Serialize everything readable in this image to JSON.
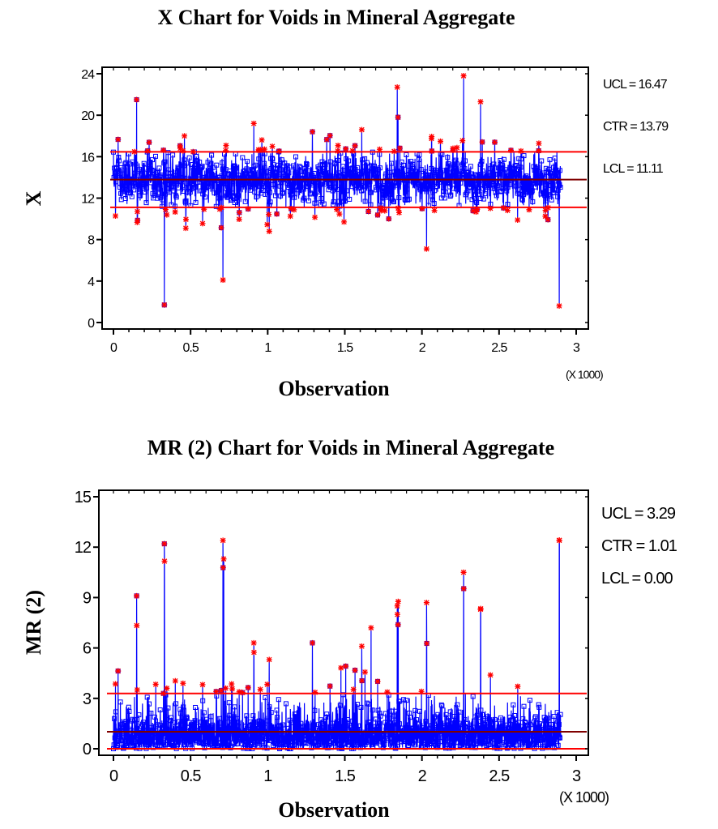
{
  "chart_data": [
    {
      "type": "line",
      "title": "X Chart for Voids in Mineral Aggregate",
      "xlabel": "Observation",
      "ylabel": "X",
      "x_multiplier_label": "(X 1000)",
      "xlim": [
        0,
        3
      ],
      "ylim": [
        0,
        24
      ],
      "x_ticks": [
        "0",
        "0.5",
        "1",
        "1.5",
        "2",
        "2.5",
        "3"
      ],
      "y_ticks": [
        "0",
        "4",
        "8",
        "12",
        "16",
        "20",
        "24"
      ],
      "n_observations": 2900,
      "center": 13.79,
      "band_sigma": 0.8,
      "seed": 7,
      "control_limits": [
        {
          "name": "UCL",
          "label": "UCL = 16.47",
          "value": 16.47
        },
        {
          "name": "CTR",
          "label": "CTR = 13.79",
          "value": 13.79
        },
        {
          "name": "LCL",
          "label": "LCL = 11.11",
          "value": 11.11
        }
      ],
      "notable_points": [
        {
          "x": 0.15,
          "y": 21.5
        },
        {
          "x": 0.33,
          "y": 1.7
        },
        {
          "x": 0.46,
          "y": 18.0
        },
        {
          "x": 0.71,
          "y": 4.1
        },
        {
          "x": 0.91,
          "y": 19.2
        },
        {
          "x": 1.01,
          "y": 8.8
        },
        {
          "x": 1.29,
          "y": 18.4
        },
        {
          "x": 1.61,
          "y": 18.6
        },
        {
          "x": 1.84,
          "y": 22.7
        },
        {
          "x": 1.845,
          "y": 19.8
        },
        {
          "x": 2.03,
          "y": 7.1
        },
        {
          "x": 2.27,
          "y": 23.8
        },
        {
          "x": 2.38,
          "y": 21.3
        },
        {
          "x": 2.89,
          "y": 1.6
        }
      ],
      "grid": false,
      "legend": "none",
      "colors": {
        "series": "#0000ff",
        "marker": "#ff0000",
        "limit": "#ff0000",
        "center": "#800000"
      }
    },
    {
      "type": "line",
      "title": "MR (2) Chart for Voids in Mineral Aggregate",
      "xlabel": "Observation",
      "ylabel": "MR (2)",
      "x_multiplier_label": "(X 1000)",
      "xlim": [
        0,
        3
      ],
      "ylim": [
        0,
        15
      ],
      "x_ticks": [
        "0",
        "0.5",
        "1",
        "1.5",
        "2",
        "2.5",
        "3"
      ],
      "y_ticks": [
        "0",
        "3",
        "6",
        "9",
        "12",
        "15"
      ],
      "n_observations": 2900,
      "seed": 7,
      "control_limits": [
        {
          "name": "UCL",
          "label": "UCL = 3.29",
          "value": 3.29
        },
        {
          "name": "CTR",
          "label": "CTR = 1.01",
          "value": 1.01
        },
        {
          "name": "LCL",
          "label": "LCL = 0.00",
          "value": 0.0
        }
      ],
      "notable_points": [
        {
          "x": 0.15,
          "y": 9.1
        },
        {
          "x": 0.33,
          "y": 12.2
        },
        {
          "x": 0.71,
          "y": 12.4
        },
        {
          "x": 0.715,
          "y": 11.3
        },
        {
          "x": 0.91,
          "y": 6.3
        },
        {
          "x": 1.29,
          "y": 6.3
        },
        {
          "x": 1.61,
          "y": 6.1
        },
        {
          "x": 1.67,
          "y": 7.2
        },
        {
          "x": 1.84,
          "y": 8.5
        },
        {
          "x": 2.03,
          "y": 8.7
        },
        {
          "x": 2.27,
          "y": 10.5
        },
        {
          "x": 2.38,
          "y": 8.3
        },
        {
          "x": 2.89,
          "y": 12.4
        }
      ],
      "grid": false,
      "legend": "none",
      "colors": {
        "series": "#0000ff",
        "marker": "#ff0000",
        "limit": "#ff0000",
        "center": "#800000"
      }
    }
  ]
}
